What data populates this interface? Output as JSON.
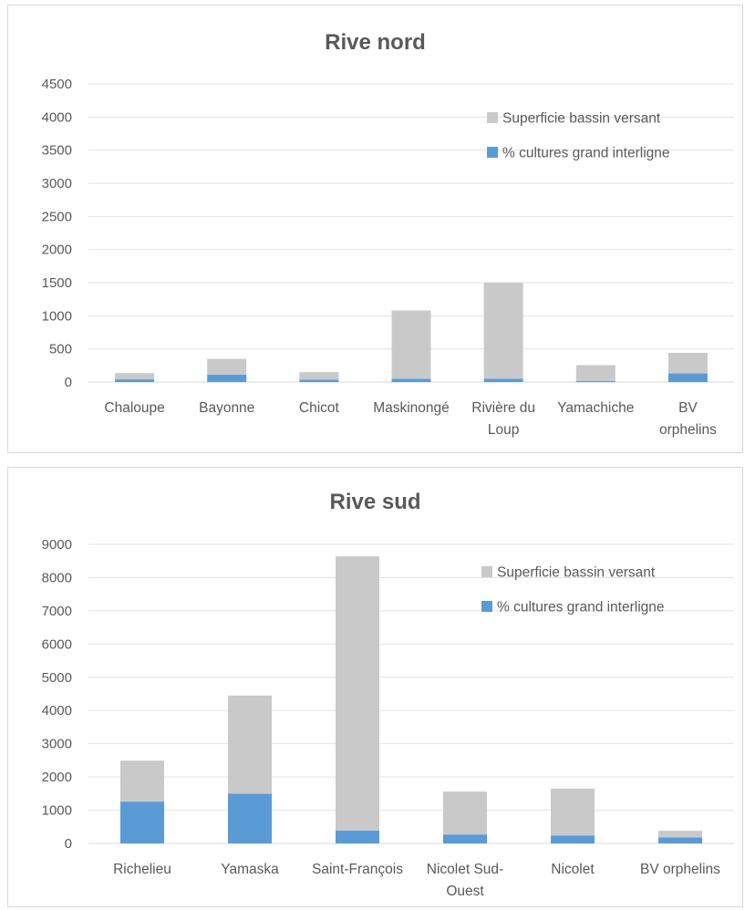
{
  "chart_data": [
    {
      "type": "bar",
      "stacked": true,
      "title": "Rive nord",
      "categories": [
        [
          "Chaloupe"
        ],
        [
          "Bayonne"
        ],
        [
          "Chicot"
        ],
        [
          "Maskinongé"
        ],
        [
          "Rivière du",
          "Loup"
        ],
        [
          "Yamachiche"
        ],
        [
          "BV",
          "orphelins"
        ]
      ],
      "series": [
        {
          "name": "% cultures grand interligne",
          "color": "#5b9bd5",
          "values": [
            40,
            110,
            35,
            50,
            50,
            15,
            130
          ]
        },
        {
          "name": "Superficie bassin versant",
          "color": "#c9c9c9",
          "values": [
            95,
            240,
            115,
            1030,
            1450,
            240,
            310
          ]
        }
      ],
      "ylim": [
        0,
        4500
      ],
      "yticks": [
        0,
        500,
        1000,
        1500,
        2000,
        2500,
        3000,
        3500,
        4000,
        4500
      ],
      "grid": true,
      "legend": "top-right"
    },
    {
      "type": "bar",
      "stacked": true,
      "title": "Rive sud",
      "categories": [
        [
          "Richelieu"
        ],
        [
          "Yamaska"
        ],
        [
          "Saint-François"
        ],
        [
          "Nicolet Sud-",
          "Ouest"
        ],
        [
          "Nicolet"
        ],
        [
          "BV orphelins"
        ]
      ],
      "series": [
        {
          "name": "% cultures grand interligne",
          "color": "#5b9bd5",
          "values": [
            1260,
            1500,
            390,
            270,
            240,
            180
          ]
        },
        {
          "name": "Superficie bassin versant",
          "color": "#c9c9c9",
          "values": [
            1230,
            2950,
            8250,
            1290,
            1410,
            200
          ]
        }
      ],
      "ylim": [
        0,
        9000
      ],
      "yticks": [
        0,
        1000,
        2000,
        3000,
        4000,
        5000,
        6000,
        7000,
        8000,
        9000
      ],
      "grid": true,
      "legend": "top-right"
    }
  ]
}
